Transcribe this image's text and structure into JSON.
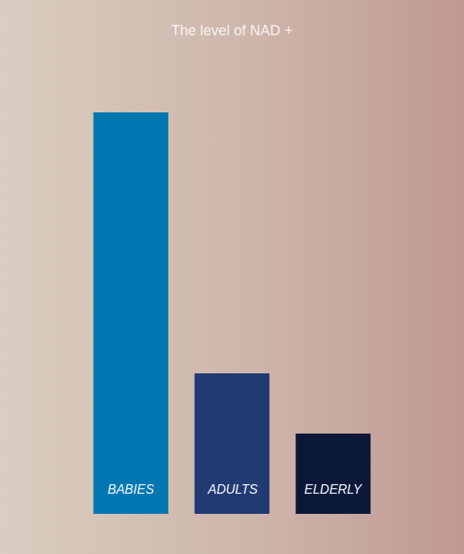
{
  "chart_data": {
    "type": "bar",
    "title": "The level of NAD +",
    "categories": [
      "BABIES",
      "ADULTS",
      "ELDERLY"
    ],
    "values": [
      100,
      35,
      20
    ],
    "colors": [
      "#0077b0",
      "#213a74",
      "#0c1838"
    ],
    "ylim": [
      0,
      100
    ],
    "yticks": [
      0,
      100
    ],
    "grid": false,
    "tick_labels": false,
    "data_labels": false
  }
}
